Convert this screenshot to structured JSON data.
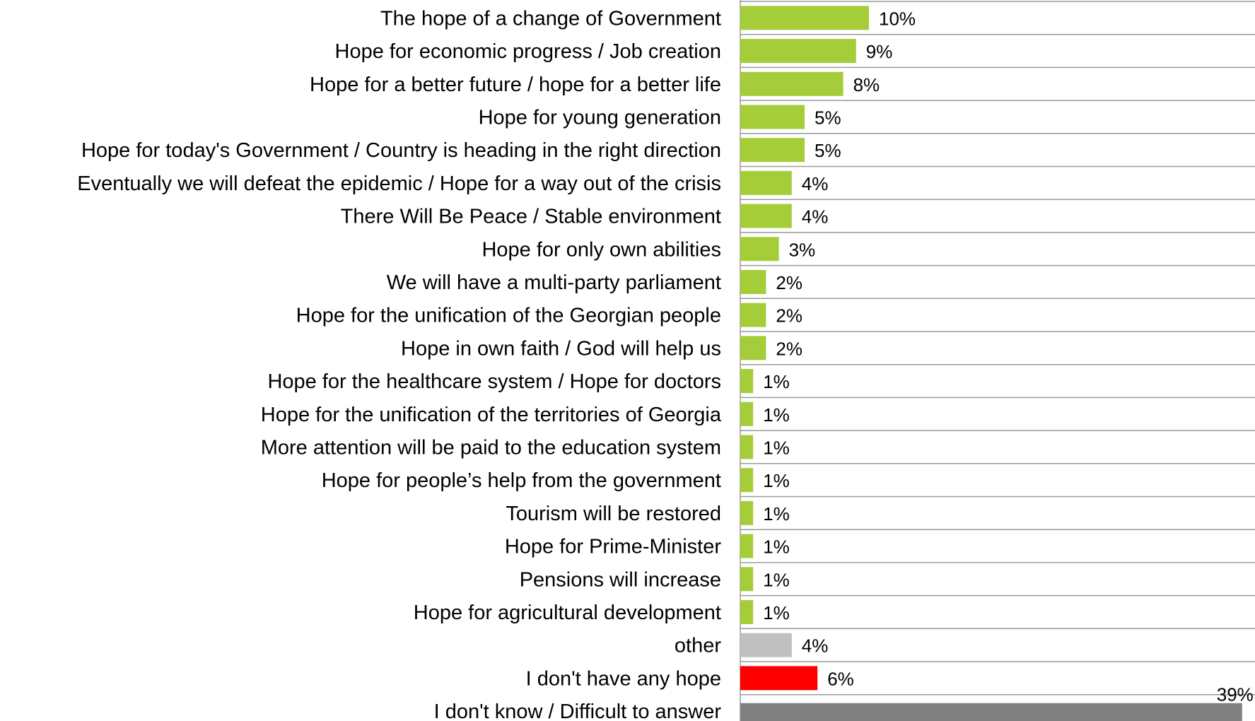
{
  "chart_data": {
    "type": "bar",
    "orientation": "horizontal",
    "categories": [
      "The hope of a change of Government",
      "Hope for economic progress / Job creation",
      "Hope for a better future / hope for a better life",
      "Hope for young generation",
      "Hope for today's Government / Country is heading in the right direction",
      "Eventually we will defeat the epidemic / Hope for a way out of the crisis",
      "There Will Be Peace / Stable environment",
      "Hope for only own abilities",
      "We will have a multi-party parliament",
      "Hope for the unification of the Georgian people",
      "Hope in own faith / God will help us",
      "Hope for the healthcare system / Hope for doctors",
      "Hope for the unification of the territories of Georgia",
      "More attention will be paid to the education system",
      "Hope for people’s help from the government",
      "Tourism will be restored",
      "Hope for Prime-Minister",
      "Pensions will increase",
      "Hope for agricultural development",
      "other",
      "I don't have any hope",
      "I don't know / Difficult to answer"
    ],
    "values": [
      10,
      9,
      8,
      5,
      5,
      4,
      4,
      3,
      2,
      2,
      2,
      1,
      1,
      1,
      1,
      1,
      1,
      1,
      1,
      4,
      6,
      39
    ],
    "value_labels": [
      "10%",
      "9%",
      "8%",
      "5%",
      "5%",
      "4%",
      "4%",
      "3%",
      "2%",
      "2%",
      "2%",
      "1%",
      "1%",
      "1%",
      "1%",
      "1%",
      "1%",
      "1%",
      "1%",
      "4%",
      "6%",
      "39%"
    ],
    "bar_colors": [
      "#a5cd39",
      "#a5cd39",
      "#a5cd39",
      "#a5cd39",
      "#a5cd39",
      "#a5cd39",
      "#a5cd39",
      "#a5cd39",
      "#a5cd39",
      "#a5cd39",
      "#a5cd39",
      "#a5cd39",
      "#a5cd39",
      "#a5cd39",
      "#a5cd39",
      "#a5cd39",
      "#a5cd39",
      "#a5cd39",
      "#a5cd39",
      "#c0c0c0",
      "#ff0000",
      "#808080"
    ],
    "xlim": [
      0,
      40
    ],
    "unit": "%",
    "title": "",
    "xlabel": "",
    "ylabel": "",
    "grid": "horizontal separators between rows",
    "legend": "none"
  }
}
